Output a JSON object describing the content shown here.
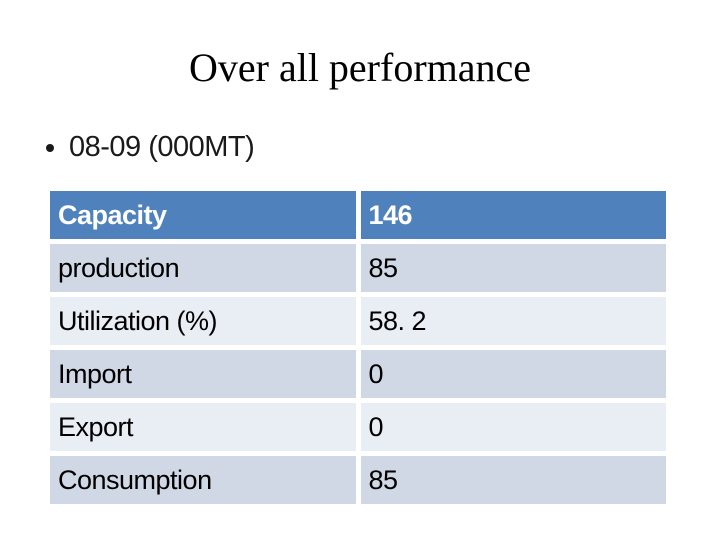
{
  "slide": {
    "title": "Over all performance",
    "bullet_text": "08-09 (000MT)"
  },
  "table": {
    "header": {
      "label": "Capacity",
      "value": "146"
    },
    "rows": [
      {
        "label": "production",
        "value": "85"
      },
      {
        "label": "Utilization (%)",
        "value": "58. 2"
      },
      {
        "label": "Import",
        "value": "0"
      },
      {
        "label": "Export",
        "value": "0"
      },
      {
        "label": "Consumption",
        "value": "85"
      }
    ]
  },
  "colors": {
    "header_bg": "#4f81bd",
    "header_text": "#ffffff",
    "row_band_dark": "#d0d7e5",
    "row_band_light": "#e9edf4",
    "body_text": "#000000",
    "background": "#ffffff"
  }
}
